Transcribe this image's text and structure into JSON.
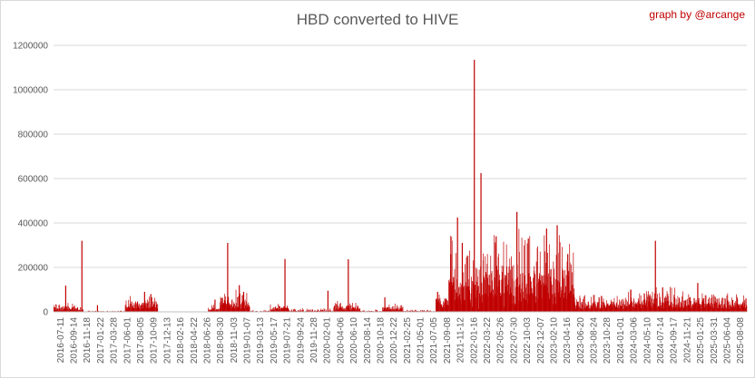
{
  "chart_data": {
    "type": "bar",
    "title": "HBD converted to HIVE",
    "credit": "graph by @arcange",
    "xlabel": "",
    "ylabel": "",
    "ylim": [
      0,
      1200000
    ],
    "y_ticks": [
      0,
      200000,
      400000,
      600000,
      800000,
      1000000,
      1200000
    ],
    "y_tick_labels": [
      "0",
      "200000",
      "400000",
      "600000",
      "800000",
      "1000000",
      "1200000"
    ],
    "grid": true,
    "legend": "none",
    "bar_color": "#c00000",
    "x_start": "2016-07-11",
    "x_end": "2025-09-01",
    "x_tick_labels": [
      "2016-07-11",
      "2016-09-14",
      "2016-11-18",
      "2017-01-22",
      "2017-03-28",
      "2017-06-01",
      "2017-08-05",
      "2017-10-09",
      "2017-12-13",
      "2018-02-16",
      "2018-04-22",
      "2018-06-26",
      "2018-08-30",
      "2018-11-03",
      "2019-01-07",
      "2019-03-13",
      "2019-05-17",
      "2019-07-21",
      "2019-09-24",
      "2019-11-28",
      "2020-02-01",
      "2020-04-06",
      "2020-06-10",
      "2020-08-14",
      "2020-10-18",
      "2020-12-22",
      "2021-02-25",
      "2021-05-01",
      "2021-07-05",
      "2021-09-08",
      "2021-11-12",
      "2022-01-16",
      "2022-03-22",
      "2022-05-26",
      "2022-07-30",
      "2022-10-03",
      "2022-12-07",
      "2023-02-10",
      "2023-04-16",
      "2023-06-20",
      "2023-08-24",
      "2023-10-28",
      "2024-01-01",
      "2024-03-06",
      "2024-05-10",
      "2024-07-14",
      "2024-09-17",
      "2024-11-21",
      "2025-01-25",
      "2025-03-31",
      "2025-06-04",
      "2025-08-08"
    ],
    "segments": [
      {
        "from": "2016-07-11",
        "to": "2016-10-20",
        "level": 15000,
        "spread": 15000
      },
      {
        "from": "2016-10-20",
        "to": "2016-12-01",
        "level": 8000,
        "spread": 10000
      },
      {
        "from": "2016-12-01",
        "to": "2017-06-20",
        "level": 1000,
        "spread": 3000
      },
      {
        "from": "2017-06-20",
        "to": "2017-11-25",
        "level": 30000,
        "spread": 25000
      },
      {
        "from": "2017-11-25",
        "to": "2018-07-25",
        "level": 0,
        "spread": 800
      },
      {
        "from": "2018-07-25",
        "to": "2018-09-20",
        "level": 10000,
        "spread": 15000
      },
      {
        "from": "2018-09-20",
        "to": "2019-02-10",
        "level": 35000,
        "spread": 40000
      },
      {
        "from": "2019-02-10",
        "to": "2019-05-20",
        "level": 1500,
        "spread": 4000
      },
      {
        "from": "2019-05-20",
        "to": "2019-08-20",
        "level": 15000,
        "spread": 18000
      },
      {
        "from": "2019-08-20",
        "to": "2020-03-20",
        "level": 3000,
        "spread": 8000
      },
      {
        "from": "2020-03-20",
        "to": "2020-07-25",
        "level": 15000,
        "spread": 22000
      },
      {
        "from": "2020-07-25",
        "to": "2020-11-10",
        "level": 2500,
        "spread": 5000
      },
      {
        "from": "2020-11-10",
        "to": "2021-02-20",
        "level": 12000,
        "spread": 14000
      },
      {
        "from": "2021-02-20",
        "to": "2021-07-25",
        "level": 2000,
        "spread": 5000
      },
      {
        "from": "2021-07-25",
        "to": "2021-09-25",
        "level": 40000,
        "spread": 40000
      },
      {
        "from": "2021-09-25",
        "to": "2021-11-15",
        "level": 130000,
        "spread": 150000
      },
      {
        "from": "2021-11-15",
        "to": "2022-03-10",
        "level": 110000,
        "spread": 120000
      },
      {
        "from": "2022-03-10",
        "to": "2022-12-25",
        "level": 140000,
        "spread": 150000
      },
      {
        "from": "2022-12-25",
        "to": "2023-05-25",
        "level": 170000,
        "spread": 130000
      },
      {
        "from": "2023-05-25",
        "to": "2024-01-20",
        "level": 30000,
        "spread": 30000
      },
      {
        "from": "2024-01-20",
        "to": "2024-10-10",
        "level": 40000,
        "spread": 45000
      },
      {
        "from": "2024-10-10",
        "to": "2025-09-01",
        "level": 35000,
        "spread": 35000
      }
    ],
    "spikes": [
      {
        "date": "2016-09-05",
        "value": 118000
      },
      {
        "date": "2016-11-22",
        "value": 320000
      },
      {
        "date": "2017-02-05",
        "value": 30000
      },
      {
        "date": "2017-09-20",
        "value": 90000
      },
      {
        "date": "2017-10-20",
        "value": 80000
      },
      {
        "date": "2018-08-25",
        "value": 55000
      },
      {
        "date": "2018-10-25",
        "value": 310000
      },
      {
        "date": "2018-12-20",
        "value": 120000
      },
      {
        "date": "2019-01-10",
        "value": 90000
      },
      {
        "date": "2019-07-28",
        "value": 238000
      },
      {
        "date": "2020-02-20",
        "value": 95000
      },
      {
        "date": "2020-05-28",
        "value": 237000
      },
      {
        "date": "2020-11-20",
        "value": 65000
      },
      {
        "date": "2021-08-01",
        "value": 90000
      },
      {
        "date": "2021-11-05",
        "value": 425000
      },
      {
        "date": "2021-11-28",
        "value": 310000
      },
      {
        "date": "2022-01-25",
        "value": 1135000
      },
      {
        "date": "2022-02-26",
        "value": 625000
      },
      {
        "date": "2022-05-10",
        "value": 340000
      },
      {
        "date": "2022-08-18",
        "value": 450000
      },
      {
        "date": "2022-10-12",
        "value": 330000
      },
      {
        "date": "2023-01-08",
        "value": 375000
      },
      {
        "date": "2023-02-28",
        "value": 390000
      },
      {
        "date": "2023-04-20",
        "value": 260000
      },
      {
        "date": "2024-06-15",
        "value": 320000
      },
      {
        "date": "2024-07-20",
        "value": 110000
      },
      {
        "date": "2025-01-05",
        "value": 130000
      },
      {
        "date": "2025-08-25",
        "value": 60000
      }
    ]
  }
}
